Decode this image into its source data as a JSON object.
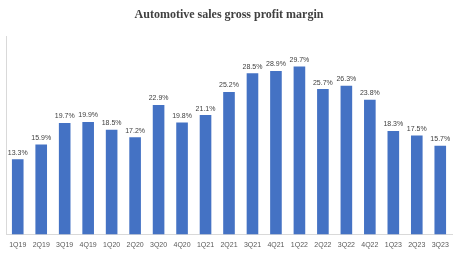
{
  "chart_data": {
    "type": "bar",
    "title": "Automotive sales gross profit margin",
    "categories": [
      "1Q19",
      "2Q19",
      "3Q19",
      "4Q19",
      "1Q20",
      "2Q20",
      "3Q20",
      "4Q20",
      "1Q21",
      "2Q21",
      "3Q21",
      "4Q21",
      "1Q22",
      "2Q22",
      "3Q22",
      "4Q22",
      "1Q23",
      "2Q23",
      "3Q23"
    ],
    "values": [
      13.3,
      15.9,
      19.7,
      19.9,
      18.5,
      17.2,
      22.9,
      19.8,
      21.1,
      25.2,
      28.5,
      28.9,
      29.7,
      25.7,
      26.3,
      23.8,
      18.3,
      17.5,
      15.7
    ],
    "value_labels": [
      "13.3%",
      "15.9%",
      "19.7%",
      "19.9%",
      "18.5%",
      "17.2%",
      "22.9%",
      "19.8%",
      "21.1%",
      "25.2%",
      "28.5%",
      "28.9%",
      "29.7%",
      "25.7%",
      "26.3%",
      "23.8%",
      "18.3%",
      "17.5%",
      "15.7%"
    ],
    "color": "#4472c4",
    "ylim": [
      0,
      35
    ],
    "grid": false,
    "data_labels": true,
    "tick_labels": "x"
  }
}
